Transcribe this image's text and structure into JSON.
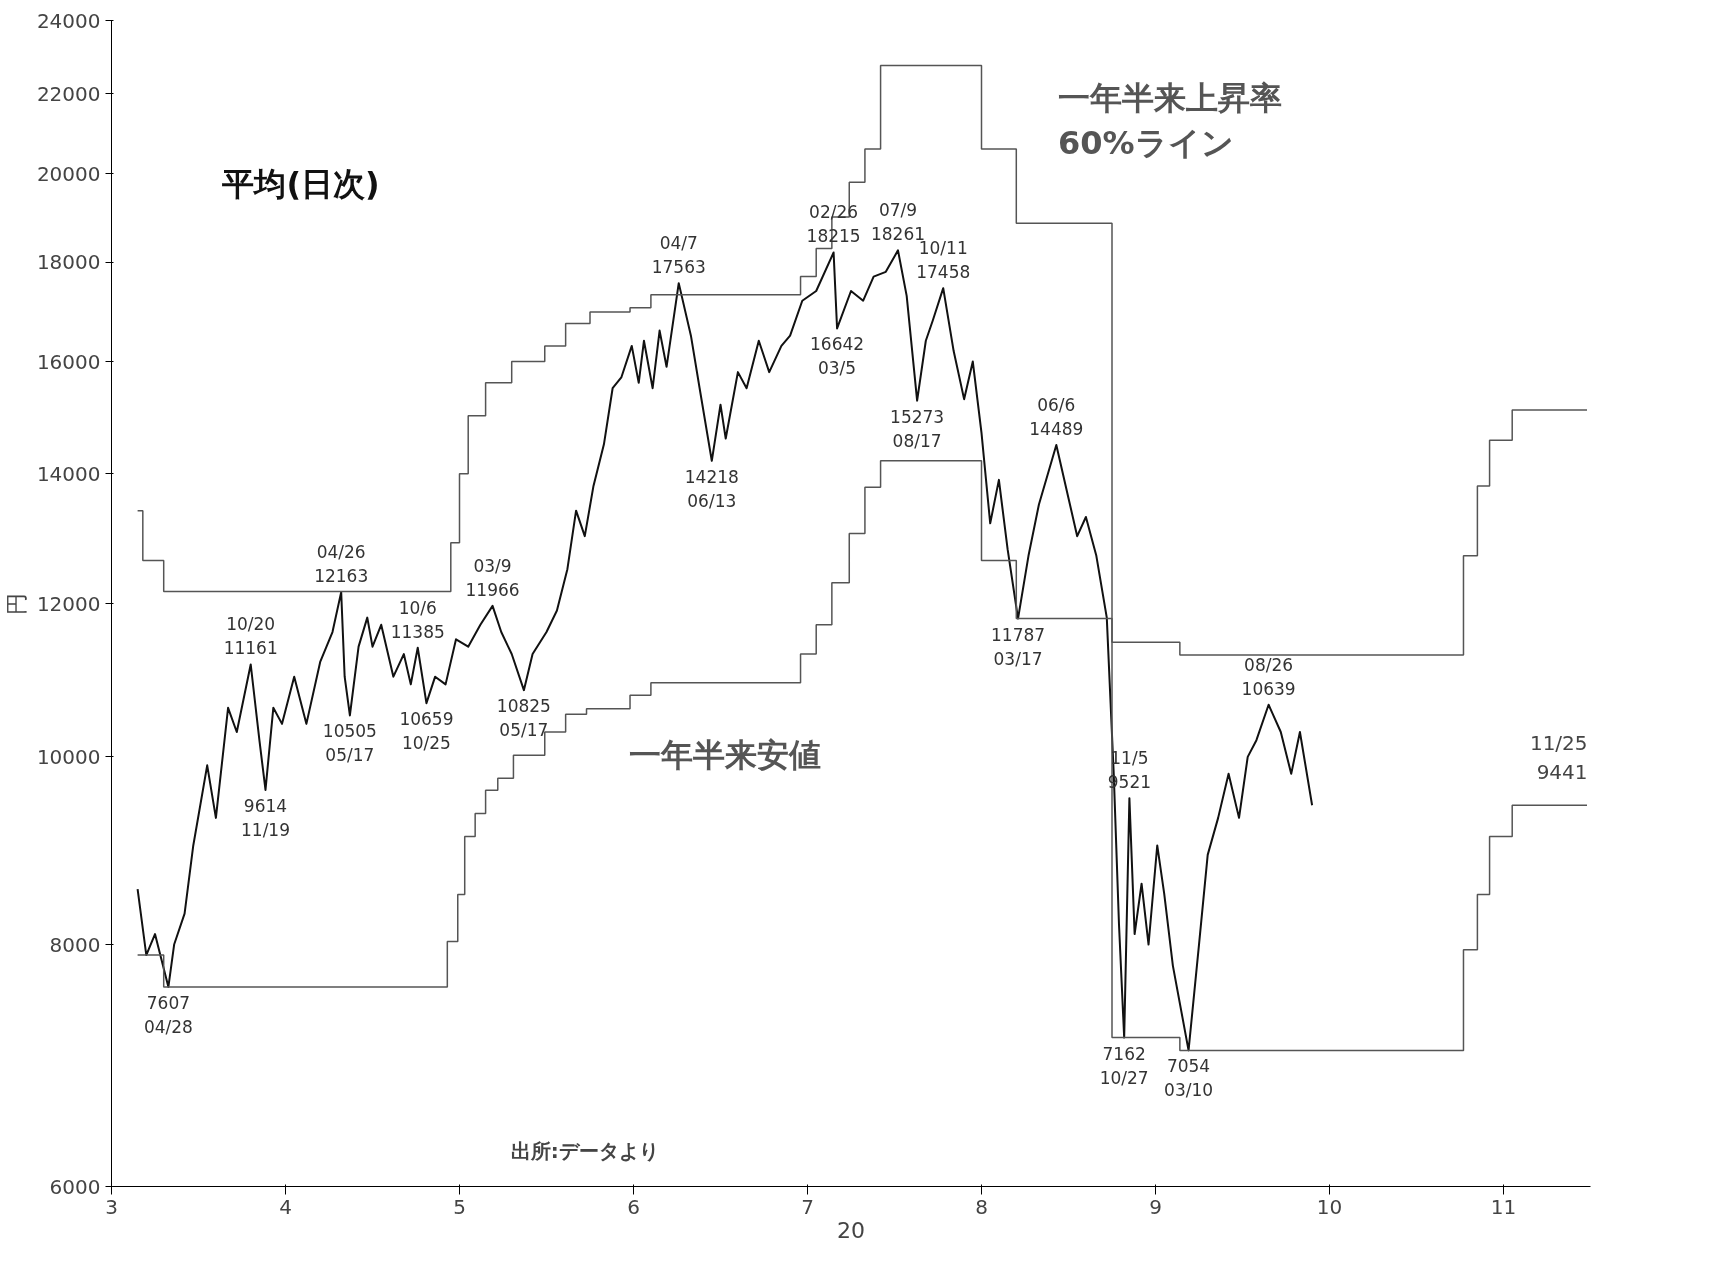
{
  "chart_data": {
    "type": "line",
    "ylabel": "円",
    "xlabel": "20",
    "log": "y",
    "grid": false,
    "xlim": [
      3.0,
      11.5
    ],
    "ylim": [
      6000,
      24000
    ],
    "yticks": [
      6000,
      8000,
      10000,
      12000,
      14000,
      16000,
      18000,
      20000,
      22000,
      24000
    ],
    "xticks": [
      3,
      4,
      5,
      6,
      7,
      8,
      9,
      10,
      11
    ],
    "series": [
      {
        "name": "平均(日次)",
        "color": "#111111",
        "x": [
          3.15,
          3.2,
          3.25,
          3.327,
          3.36,
          3.42,
          3.47,
          3.55,
          3.6,
          3.67,
          3.72,
          3.8,
          3.85,
          3.885,
          3.93,
          3.98,
          4.05,
          4.12,
          4.2,
          4.27,
          4.32,
          4.34,
          4.37,
          4.42,
          4.47,
          4.5,
          4.55,
          4.62,
          4.68,
          4.72,
          4.76,
          4.81,
          4.86,
          4.92,
          4.98,
          5.05,
          5.12,
          5.19,
          5.24,
          5.3,
          5.37,
          5.42,
          5.5,
          5.56,
          5.62,
          5.67,
          5.72,
          5.77,
          5.83,
          5.88,
          5.93,
          5.99,
          6.03,
          6.06,
          6.11,
          6.15,
          6.19,
          6.26,
          6.33,
          6.38,
          6.45,
          6.5,
          6.53,
          6.6,
          6.65,
          6.72,
          6.78,
          6.85,
          6.9,
          6.97,
          7.05,
          7.15,
          7.17,
          7.25,
          7.32,
          7.38,
          7.45,
          7.52,
          7.57,
          7.63,
          7.68,
          7.72,
          7.78,
          7.84,
          7.9,
          7.95,
          8.0,
          8.05,
          8.1,
          8.15,
          8.21,
          8.27,
          8.33,
          8.43,
          8.5,
          8.55,
          8.6,
          8.66,
          8.72,
          8.76,
          8.79,
          8.82,
          8.85,
          8.88,
          8.92,
          8.96,
          9.01,
          9.05,
          9.1,
          9.19,
          9.25,
          9.3,
          9.36,
          9.42,
          9.48,
          9.53,
          9.58,
          9.65,
          9.72,
          9.78,
          9.83,
          9.9
        ],
        "values": [
          8544,
          7900,
          8100,
          7607,
          8000,
          8300,
          9000,
          9900,
          9300,
          10600,
          10300,
          11161,
          10200,
          9614,
          10600,
          10400,
          11000,
          10400,
          11200,
          11600,
          12163,
          11000,
          10505,
          11400,
          11800,
          11400,
          11700,
          11000,
          11300,
          10900,
          11385,
          10659,
          11000,
          10900,
          11500,
          11400,
          11700,
          11966,
          11600,
          11300,
          10825,
          11300,
          11600,
          11900,
          12500,
          13400,
          13000,
          13800,
          14500,
          15500,
          15700,
          16300,
          15600,
          16400,
          15500,
          16600,
          15900,
          17563,
          16500,
          15500,
          14218,
          15200,
          14600,
          15800,
          15500,
          16400,
          15800,
          16300,
          16500,
          17200,
          17400,
          18215,
          16642,
          17400,
          17200,
          17700,
          17800,
          18261,
          17300,
          15273,
          16400,
          16800,
          17458,
          16200,
          15300,
          16000,
          14700,
          13200,
          13900,
          12800,
          11787,
          12700,
          13500,
          14489,
          13600,
          13000,
          13300,
          12700,
          11800,
          9800,
          8200,
          7162,
          9521,
          8100,
          8600,
          8000,
          9000,
          8500,
          7800,
          7054,
          8000,
          8900,
          9300,
          9800,
          9300,
          10000,
          10200,
          10639,
          10300,
          9800,
          10300,
          9441
        ]
      },
      {
        "name": "一年半来上昇率\n60%ライン",
        "type": "step",
        "color": "#555555",
        "x": [
          3.15,
          3.18,
          3.3,
          4.95,
          5.0,
          5.05,
          5.15,
          5.3,
          5.49,
          5.61,
          5.75,
          5.98,
          6.1,
          6.96,
          7.05,
          7.14,
          7.24,
          7.33,
          7.42,
          8.0,
          8.2,
          8.75,
          9.14,
          10.77,
          10.85,
          10.92,
          11.05,
          11.48
        ],
        "values": [
          13400,
          12630,
          12171,
          12900,
          14000,
          15000,
          15600,
          16000,
          16300,
          16740,
          16970,
          17054,
          17320,
          17700,
          18300,
          19000,
          19800,
          20600,
          22749,
          20600,
          18859,
          11459,
          11286,
          12700,
          13800,
          14570,
          15106,
          15106
        ]
      },
      {
        "name": "一年半来安値",
        "type": "step",
        "color": "#555555",
        "x": [
          3.15,
          3.3,
          4.93,
          4.99,
          5.03,
          5.09,
          5.15,
          5.22,
          5.31,
          5.49,
          5.61,
          5.73,
          5.98,
          6.1,
          6.96,
          7.05,
          7.14,
          7.24,
          7.33,
          7.42,
          8.0,
          8.2,
          8.75,
          9.14,
          10.77,
          10.85,
          10.92,
          11.05,
          11.48
        ],
        "values": [
          7900,
          7607,
          8030,
          8490,
          9096,
          9350,
          9610,
          9750,
          10020,
          10300,
          10520,
          10590,
          10760,
          10920,
          11300,
          11700,
          12300,
          13040,
          13780,
          14218,
          12630,
          11787,
          7162,
          7054,
          7950,
          8490,
          9096,
          9441,
          9441
        ]
      }
    ],
    "annotations": [
      {
        "text": "7607\n04/28",
        "x": 3.327,
        "y": 7607
      },
      {
        "text": "10/20\n11161",
        "x": 3.8,
        "y": 11161
      },
      {
        "text": "9614\n11/19",
        "x": 3.885,
        "y": 9614
      },
      {
        "text": "04/26\n12163",
        "x": 4.32,
        "y": 12163
      },
      {
        "text": "10505\n05/17",
        "x": 4.37,
        "y": 10505
      },
      {
        "text": "10/6\n11385",
        "x": 4.76,
        "y": 11385
      },
      {
        "text": "10659\n10/25",
        "x": 4.81,
        "y": 10659
      },
      {
        "text": "03/9\n11966",
        "x": 5.19,
        "y": 11966
      },
      {
        "text": "10825\n05/17",
        "x": 5.37,
        "y": 10825
      },
      {
        "text": "04/7\n17563",
        "x": 6.26,
        "y": 17563
      },
      {
        "text": "14218\n06/13",
        "x": 6.45,
        "y": 14218
      },
      {
        "text": "02/26\n18215",
        "x": 7.15,
        "y": 18215
      },
      {
        "text": "16642\n03/5",
        "x": 7.17,
        "y": 16642
      },
      {
        "text": "07/9\n18261",
        "x": 7.52,
        "y": 18261
      },
      {
        "text": "15273\n08/17",
        "x": 7.63,
        "y": 15273
      },
      {
        "text": "10/11\n17458",
        "x": 7.78,
        "y": 17458
      },
      {
        "text": "11787\n03/17",
        "x": 8.21,
        "y": 11787
      },
      {
        "text": "06/6\n14489",
        "x": 8.43,
        "y": 14489
      },
      {
        "text": "11/5\n9521",
        "x": 8.85,
        "y": 9521
      },
      {
        "text": "7162\n10/27",
        "x": 8.82,
        "y": 7162
      },
      {
        "text": "7054\n03/10",
        "x": 9.19,
        "y": 7054
      },
      {
        "text": "08/26\n10639",
        "x": 9.65,
        "y": 10639
      },
      "11/25\n9441",
      "出所:データより"
    ]
  }
}
